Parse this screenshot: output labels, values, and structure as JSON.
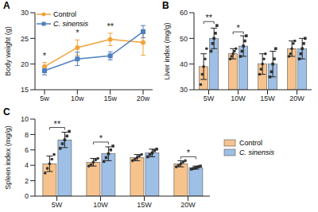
{
  "chart_data": [
    {
      "panel": "A",
      "type": "line",
      "y_label": "Body weight (g)",
      "categories": [
        "5w",
        "10w",
        "15w",
        "20w"
      ],
      "ylim": [
        15,
        30
      ],
      "yticks": [
        15,
        20,
        25,
        30
      ],
      "legend": "upper left",
      "series": [
        {
          "name": "Control",
          "color": "#f0a33a",
          "marker": "circle",
          "values": [
            19.5,
            23.2,
            24.8,
            24.2
          ],
          "errors": [
            0.8,
            1.5,
            1.2,
            2.5
          ]
        },
        {
          "name": "C. sinensis",
          "color": "#4f7fc0",
          "marker": "square",
          "values": [
            18.7,
            21.0,
            21.6,
            26.3
          ],
          "errors": [
            0.8,
            1.3,
            0.8,
            1.2
          ]
        }
      ],
      "annotations": [
        {
          "category": "5w",
          "text": "*"
        },
        {
          "category": "10w",
          "text": "*"
        },
        {
          "category": "15w",
          "text": "**"
        }
      ]
    },
    {
      "panel": "B",
      "type": "bar",
      "y_label": "Liver index (mg/g)",
      "categories": [
        "5W",
        "10W",
        "15W",
        "20W"
      ],
      "ylim": [
        30,
        60
      ],
      "yticks": [
        30,
        40,
        50,
        60
      ],
      "series": [
        {
          "name": "Control",
          "color": "#f6c38e",
          "marker": "circle",
          "values": [
            39,
            44,
            40,
            46
          ],
          "errors": [
            5,
            2,
            4,
            3
          ],
          "points": [
            [
              32,
              36,
              39,
              42,
              46
            ],
            [
              42,
              43,
              44,
              45,
              46
            ],
            [
              36,
              38,
              40,
              42,
              44
            ],
            [
              43,
              44,
              46,
              48,
              49
            ]
          ]
        },
        {
          "name": "C. sinensis",
          "color": "#9fc0e6",
          "marker": "square",
          "values": [
            50,
            47,
            40,
            46
          ],
          "errors": [
            4,
            4,
            5,
            4
          ],
          "points": [
            [
              45,
              48,
              50,
              52,
              55
            ],
            [
              43,
              45,
              47,
              49,
              51
            ],
            [
              35,
              37,
              40,
              42,
              46
            ],
            [
              42,
              44,
              46,
              48,
              50
            ]
          ]
        }
      ],
      "annotations": [
        {
          "category": "5W",
          "text": "**"
        },
        {
          "category": "10W",
          "text": "*"
        }
      ]
    },
    {
      "panel": "C",
      "type": "bar",
      "y_label": "Spleen index (mg/g)",
      "categories": [
        "5W",
        "10W",
        "15W",
        "20W"
      ],
      "ylim": [
        0,
        10
      ],
      "yticks": [
        0,
        2,
        4,
        6,
        8,
        10
      ],
      "legend": "right",
      "series": [
        {
          "name": "Control",
          "color": "#f6c38e",
          "marker": "circle",
          "values": [
            4.2,
            4.4,
            5.0,
            4.2
          ],
          "errors": [
            1.0,
            0.5,
            0.4,
            0.4
          ],
          "points": [
            [
              3.0,
              3.6,
              4.2,
              4.8,
              5.4
            ],
            [
              3.9,
              4.1,
              4.4,
              4.7,
              4.9
            ],
            [
              4.6,
              4.8,
              5.0,
              5.2,
              5.4
            ],
            [
              3.8,
              4.0,
              4.2,
              4.4,
              4.6
            ]
          ]
        },
        {
          "name": "C. sinensis",
          "color": "#9fc0e6",
          "marker": "square",
          "values": [
            7.3,
            5.5,
            5.6,
            3.7
          ],
          "errors": [
            1.0,
            0.9,
            0.5,
            0.2
          ],
          "points": [
            [
              6.2,
              6.8,
              7.3,
              7.8,
              8.4
            ],
            [
              4.5,
              5.0,
              5.5,
              6.0,
              6.5
            ],
            [
              5.1,
              5.4,
              5.6,
              5.9,
              6.1
            ],
            [
              3.5,
              3.6,
              3.7,
              3.8,
              3.9
            ]
          ]
        }
      ],
      "annotations": [
        {
          "category": "5W",
          "text": "**"
        },
        {
          "category": "10W",
          "text": "*"
        },
        {
          "category": "20W",
          "text": "*"
        }
      ]
    }
  ]
}
